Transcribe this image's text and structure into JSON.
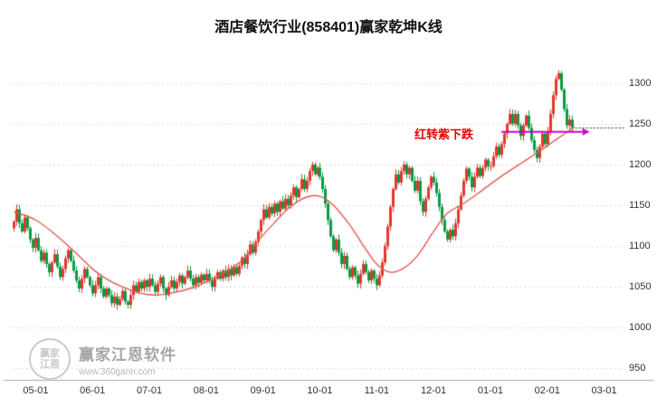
{
  "title": "酒店餐饮行业(858401)赢家乾坤K线",
  "annotation": {
    "label": "红转紫下跌",
    "text_color": "#e60000",
    "arrow_color": "#cc00cc",
    "value": 1240,
    "arrow_start_slot": 180,
    "arrow_end_slot": 210
  },
  "watermark": {
    "brand": "赢家江恩软件",
    "site": "www.360gann.com",
    "seal_text": "赢家\n江恩"
  },
  "chart_data": {
    "type": "candlestick",
    "title": "酒店餐饮行业(858401)赢家乾坤K线",
    "x_labels": [
      "05-01",
      "06-01",
      "07-01",
      "08-01",
      "09-01",
      "10-01",
      "11-01",
      "12-01",
      "01-01",
      "02-01",
      "03-01"
    ],
    "label_slots": [
      8,
      29,
      50,
      71,
      92,
      113,
      134,
      155,
      176,
      197,
      218
    ],
    "total_slots": 226,
    "y_ticks": [
      1300,
      1250,
      1200,
      1150,
      1100,
      1050,
      1000,
      950
    ],
    "y_max": 1333,
    "y_min": 936,
    "grid": true,
    "up_color": "#e0392e",
    "down_color": "#089b45",
    "ma_color": "#e05a55",
    "grid_color": "#d9d9d9",
    "axis_color": "#aaaaaa",
    "last_price_line_color": "#333333",
    "first_open": 1122,
    "closes": [
      1130,
      1145,
      1128,
      1118,
      1135,
      1122,
      1108,
      1098,
      1110,
      1095,
      1082,
      1092,
      1078,
      1068,
      1080,
      1090,
      1075,
      1062,
      1072,
      1085,
      1095,
      1082,
      1070,
      1058,
      1048,
      1060,
      1072,
      1062,
      1052,
      1042,
      1052,
      1062,
      1048,
      1038,
      1048,
      1040,
      1030,
      1038,
      1028,
      1035,
      1045,
      1032,
      1028,
      1040,
      1052,
      1044,
      1056,
      1048,
      1058,
      1050,
      1060,
      1052,
      1044,
      1054,
      1062,
      1048,
      1040,
      1050,
      1058,
      1048,
      1056,
      1064,
      1054,
      1062,
      1070,
      1060,
      1052,
      1062,
      1055,
      1065,
      1058,
      1066,
      1058,
      1050,
      1060,
      1068,
      1060,
      1070,
      1062,
      1072,
      1064,
      1074,
      1066,
      1076,
      1086,
      1078,
      1090,
      1102,
      1092,
      1105,
      1118,
      1132,
      1145,
      1135,
      1148,
      1140,
      1152,
      1142,
      1155,
      1146,
      1158,
      1150,
      1162,
      1172,
      1160,
      1170,
      1182,
      1170,
      1180,
      1192,
      1200,
      1188,
      1196,
      1185,
      1170,
      1152,
      1132,
      1112,
      1095,
      1108,
      1092,
      1078,
      1088,
      1072,
      1062,
      1074,
      1064,
      1054,
      1066,
      1078,
      1068,
      1058,
      1070,
      1060,
      1052,
      1064,
      1080,
      1100,
      1124,
      1148,
      1170,
      1188,
      1178,
      1192,
      1200,
      1188,
      1196,
      1180,
      1168,
      1180,
      1155,
      1142,
      1158,
      1172,
      1185,
      1178,
      1165,
      1148,
      1132,
      1118,
      1108,
      1120,
      1112,
      1128,
      1145,
      1162,
      1180,
      1195,
      1185,
      1172,
      1185,
      1196,
      1186,
      1196,
      1206,
      1198,
      1198,
      1210,
      1222,
      1212,
      1225,
      1238,
      1250,
      1262,
      1250,
      1262,
      1248,
      1235,
      1248,
      1260,
      1245,
      1230,
      1218,
      1208,
      1222,
      1238,
      1225,
      1240,
      1262,
      1285,
      1305,
      1312,
      1292,
      1268,
      1248,
      1255,
      1245
    ],
    "ma_anchors": [
      [
        0,
        1142
      ],
      [
        8,
        1132
      ],
      [
        16,
        1112
      ],
      [
        24,
        1088
      ],
      [
        29,
        1072
      ],
      [
        34,
        1060
      ],
      [
        40,
        1050
      ],
      [
        47,
        1042
      ],
      [
        53,
        1040
      ],
      [
        59,
        1043
      ],
      [
        65,
        1048
      ],
      [
        71,
        1056
      ],
      [
        78,
        1068
      ],
      [
        84,
        1082
      ],
      [
        90,
        1106
      ],
      [
        96,
        1128
      ],
      [
        102,
        1148
      ],
      [
        108,
        1160
      ],
      [
        113,
        1161
      ],
      [
        118,
        1150
      ],
      [
        124,
        1126
      ],
      [
        130,
        1096
      ],
      [
        134,
        1078
      ],
      [
        139,
        1068
      ],
      [
        144,
        1073
      ],
      [
        149,
        1088
      ],
      [
        155,
        1118
      ],
      [
        160,
        1140
      ],
      [
        166,
        1152
      ],
      [
        172,
        1166
      ],
      [
        176,
        1176
      ],
      [
        182,
        1190
      ],
      [
        188,
        1203
      ],
      [
        194,
        1216
      ],
      [
        200,
        1230
      ],
      [
        207,
        1246
      ]
    ]
  }
}
